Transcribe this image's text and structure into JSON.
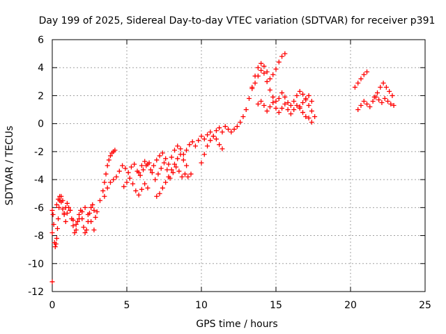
{
  "chart_data": {
    "type": "scatter",
    "title": "Day 199 of 2025, Sidereal Day-to-day VTEC variation (SDTVAR) for receiver p391",
    "xlabel": "GPS time / hours",
    "ylabel": "SDTVAR / TECUs",
    "xlim": [
      0,
      25
    ],
    "ylim": [
      -12,
      6
    ],
    "xticks": [
      0,
      5,
      10,
      15,
      20,
      25
    ],
    "xtick_labels": [
      "0",
      "5",
      "10",
      "15",
      "20",
      "25"
    ],
    "yticks": [
      -12,
      -10,
      -8,
      -6,
      -4,
      -2,
      0,
      2,
      4,
      6
    ],
    "ytick_labels": [
      "-12",
      "-10",
      "-8",
      "-6",
      "-4",
      "-2",
      "0",
      "2",
      "4",
      "6"
    ],
    "grid": true,
    "marker": "+",
    "color": "#ff0000",
    "series": [
      {
        "name": "SDTVAR",
        "x": [
          0.0,
          0.05,
          0.1,
          0.15,
          0.2,
          0.25,
          0.3,
          0.35,
          0.4,
          0.45,
          0.5,
          0.6,
          0.7,
          0.8,
          0.9,
          1.0,
          1.1,
          1.2,
          1.3,
          1.4,
          1.5,
          1.6,
          1.7,
          1.8,
          1.9,
          2.0,
          2.1,
          2.2,
          2.3,
          2.4,
          2.5,
          2.6,
          2.7,
          2.8,
          2.9,
          3.0,
          0.3,
          0.4,
          0.5,
          0.6,
          0.7,
          0.8,
          0.9,
          1.0,
          1.2,
          1.4,
          1.6,
          1.8,
          2.0,
          2.2,
          2.4,
          2.6,
          2.8,
          3.2,
          3.4,
          3.5,
          3.6,
          3.7,
          3.8,
          3.9,
          4.0,
          4.1,
          4.2,
          3.5,
          3.7,
          3.9,
          4.1,
          4.3,
          4.5,
          4.7,
          4.9,
          5.1,
          5.3,
          5.5,
          5.7,
          5.9,
          6.1,
          6.3,
          6.5,
          6.7,
          6.9,
          7.1,
          7.3,
          7.5,
          7.7,
          7.9,
          8.1,
          8.3,
          8.5,
          8.7,
          8.9,
          9.1,
          9.3,
          5.8,
          6.0,
          6.2,
          6.4,
          6.6,
          6.8,
          7.0,
          7.2,
          7.4,
          7.6,
          7.8,
          8.0,
          8.2,
          8.4,
          8.6,
          8.8,
          9.0,
          9.2,
          9.4,
          9.6,
          9.8,
          10.0,
          10.2,
          10.4,
          10.6,
          10.8,
          11.0,
          11.2,
          11.4,
          11.6,
          11.8,
          4.8,
          5.0,
          5.2,
          5.4,
          5.6,
          5.8,
          6.0,
          6.2,
          6.4,
          7.0,
          7.2,
          7.4,
          7.6,
          7.8,
          8.0,
          8.2,
          8.4,
          8.6,
          8.8,
          9.0,
          10.0,
          10.2,
          10.4,
          10.6,
          10.8,
          11.0,
          11.2,
          11.4,
          12.0,
          12.2,
          12.4,
          12.6,
          12.8,
          13.0,
          13.2,
          13.4,
          13.6,
          13.8,
          14.0,
          14.2,
          14.4,
          14.6,
          14.8,
          15.0,
          15.2,
          15.4,
          15.6,
          13.4,
          13.6,
          13.8,
          14.0,
          14.2,
          14.4,
          14.6,
          14.8,
          15.0,
          15.2,
          15.4,
          15.6,
          15.8,
          16.0,
          16.2,
          16.4,
          16.6,
          16.8,
          17.0,
          17.2,
          17.4,
          17.6,
          13.8,
          14.0,
          14.2,
          14.4,
          14.6,
          14.8,
          15.0,
          15.2,
          15.4,
          15.6,
          15.8,
          16.0,
          16.2,
          16.4,
          16.6,
          16.8,
          17.0,
          17.2,
          17.4,
          16.6,
          16.8,
          17.0,
          17.2,
          17.4,
          20.3,
          20.5,
          20.7,
          20.9,
          21.1,
          20.5,
          20.7,
          20.9,
          21.1,
          21.3,
          21.5,
          21.7,
          21.9,
          22.1,
          22.3,
          22.5,
          22.7,
          22.9,
          21.6,
          21.8,
          22.0,
          22.2,
          22.4,
          22.6,
          22.8,
          0.0,
          0.0
        ],
        "y": [
          -6.2,
          -6.5,
          -7.2,
          -8.5,
          -8.8,
          -8.6,
          -8.2,
          -7.5,
          -6.8,
          -6.0,
          -5.5,
          -5.2,
          -5.5,
          -6.5,
          -7.0,
          -6.4,
          -6.0,
          -6.2,
          -6.8,
          -7.3,
          -7.8,
          -7.6,
          -7.0,
          -6.5,
          -6.2,
          -6.8,
          -7.4,
          -7.8,
          -7.6,
          -7.0,
          -6.4,
          -6.0,
          -5.8,
          -6.2,
          -6.7,
          -6.3,
          -5.8,
          -5.4,
          -5.2,
          -5.6,
          -6.1,
          -6.4,
          -6.0,
          -5.7,
          -6.2,
          -6.9,
          -7.2,
          -6.8,
          -6.3,
          -6.0,
          -6.5,
          -7.0,
          -7.6,
          -5.5,
          -4.8,
          -4.2,
          -3.6,
          -3.0,
          -2.6,
          -2.3,
          -2.1,
          -2.0,
          -1.9,
          -5.2,
          -4.6,
          -4.2,
          -4.0,
          -3.8,
          -3.4,
          -3.0,
          -3.2,
          -3.5,
          -3.1,
          -2.9,
          -3.4,
          -3.7,
          -3.3,
          -3.0,
          -2.8,
          -3.5,
          -4.0,
          -3.6,
          -3.2,
          -2.8,
          -3.3,
          -3.9,
          -3.5,
          -3.1,
          -3.4,
          -3.8,
          -3.6,
          -3.8,
          -3.6,
          -3.5,
          -3.0,
          -2.7,
          -2.9,
          -3.3,
          -3.0,
          -2.6,
          -2.3,
          -2.1,
          -2.5,
          -2.9,
          -2.4,
          -1.9,
          -1.6,
          -1.8,
          -2.2,
          -1.9,
          -1.5,
          -1.3,
          -1.6,
          -1.2,
          -0.9,
          -1.1,
          -0.8,
          -0.6,
          -0.9,
          -0.5,
          -0.3,
          -0.6,
          -0.2,
          -0.4,
          -4.5,
          -4.2,
          -3.9,
          -4.3,
          -4.8,
          -5.1,
          -4.7,
          -4.3,
          -4.6,
          -5.2,
          -5.0,
          -4.6,
          -4.2,
          -3.8,
          -3.3,
          -2.9,
          -2.5,
          -2.2,
          -2.6,
          -3.0,
          -2.8,
          -2.2,
          -1.6,
          -1.2,
          -0.9,
          -1.1,
          -1.5,
          -1.8,
          -0.6,
          -0.4,
          -0.2,
          0.1,
          0.5,
          1.0,
          1.8,
          2.6,
          3.4,
          4.0,
          4.3,
          4.1,
          3.7,
          3.2,
          3.5,
          3.9,
          4.4,
          4.8,
          5.0,
          2.5,
          2.9,
          3.4,
          3.8,
          3.6,
          3.0,
          2.4,
          1.9,
          1.6,
          1.8,
          2.2,
          1.9,
          1.5,
          1.3,
          1.6,
          2.0,
          2.3,
          2.1,
          1.7,
          1.3,
          0.9,
          0.5,
          1.4,
          1.6,
          1.3,
          0.9,
          1.2,
          1.5,
          1.1,
          0.8,
          1.1,
          1.4,
          1.0,
          0.7,
          1.0,
          1.3,
          1.1,
          0.8,
          0.5,
          0.4,
          0.1,
          1.2,
          1.5,
          1.8,
          2.0,
          1.6,
          2.6,
          2.9,
          3.2,
          3.5,
          3.7,
          1.0,
          1.3,
          1.6,
          1.4,
          1.2,
          1.6,
          1.9,
          1.7,
          1.5,
          1.8,
          1.6,
          1.4,
          1.3,
          1.9,
          2.2,
          2.6,
          2.9,
          2.6,
          2.3,
          2.0,
          -11.3,
          -7.8
        ]
      }
    ]
  }
}
